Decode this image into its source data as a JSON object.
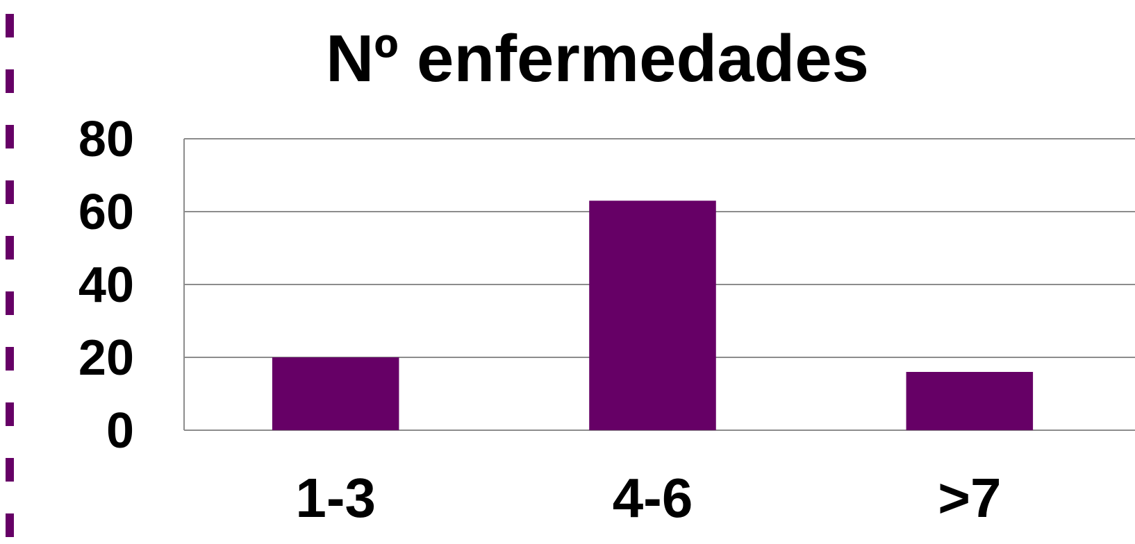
{
  "colors": {
    "bar": "#660066",
    "dash": "#660066",
    "grid": "#8c8c8c",
    "text": "#000000"
  },
  "chart_data": {
    "type": "bar",
    "title": "Nº enfermedades",
    "categories": [
      "1-3",
      "4-6",
      ">7"
    ],
    "values": [
      20,
      63,
      16
    ],
    "ylim": [
      0,
      80
    ],
    "yticks": [
      "0",
      "20",
      "40",
      "60",
      "80"
    ],
    "grid": true,
    "legend": "none",
    "xlabel": "",
    "ylabel": ""
  }
}
